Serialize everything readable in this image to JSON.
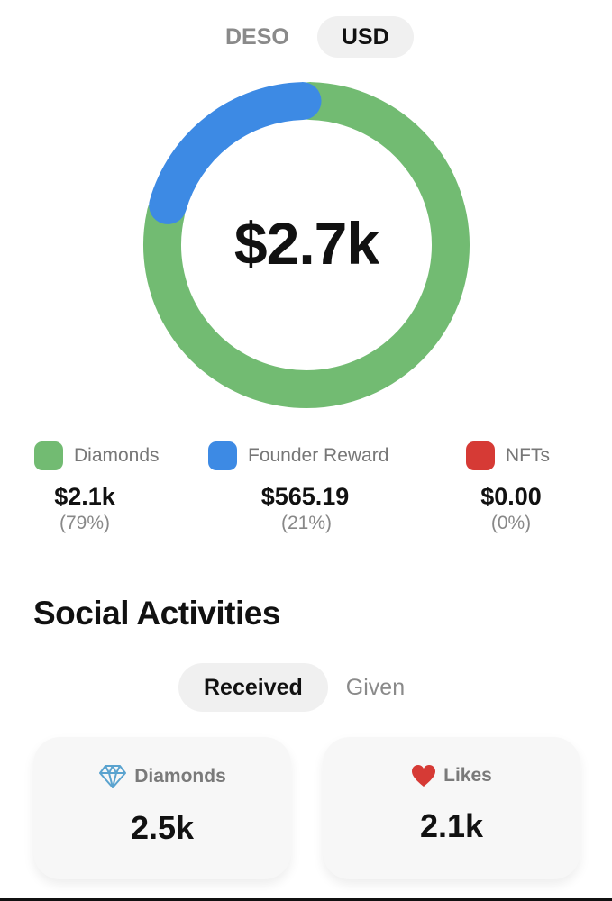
{
  "currency_toggle": {
    "options": [
      "DESO",
      "USD"
    ],
    "selected": "USD"
  },
  "total": "$2.7k",
  "chart_data": {
    "type": "pie",
    "categories": [
      "Diamonds",
      "Founder Reward",
      "NFTs"
    ],
    "values": [
      79,
      21,
      0
    ],
    "colors": [
      "#72bb72",
      "#3d8ae4",
      "#d63a35"
    ],
    "center_label": "$2.7k"
  },
  "legend": [
    {
      "label": "Diamonds",
      "value": "$2.1k",
      "percent": "(79%)",
      "color": "#72bb72"
    },
    {
      "label": "Founder Reward",
      "value": "$565.19",
      "percent": "(21%)",
      "color": "#3d8ae4"
    },
    {
      "label": "NFTs",
      "value": "$0.00",
      "percent": "(0%)",
      "color": "#d63a35"
    }
  ],
  "social": {
    "title": "Social Activities",
    "tabs": [
      "Received",
      "Given"
    ],
    "selected_tab": "Received",
    "cards": [
      {
        "icon": "diamond-icon",
        "label": "Diamonds",
        "value": "2.5k"
      },
      {
        "icon": "heart-icon",
        "label": "Likes",
        "value": "2.1k"
      }
    ]
  }
}
